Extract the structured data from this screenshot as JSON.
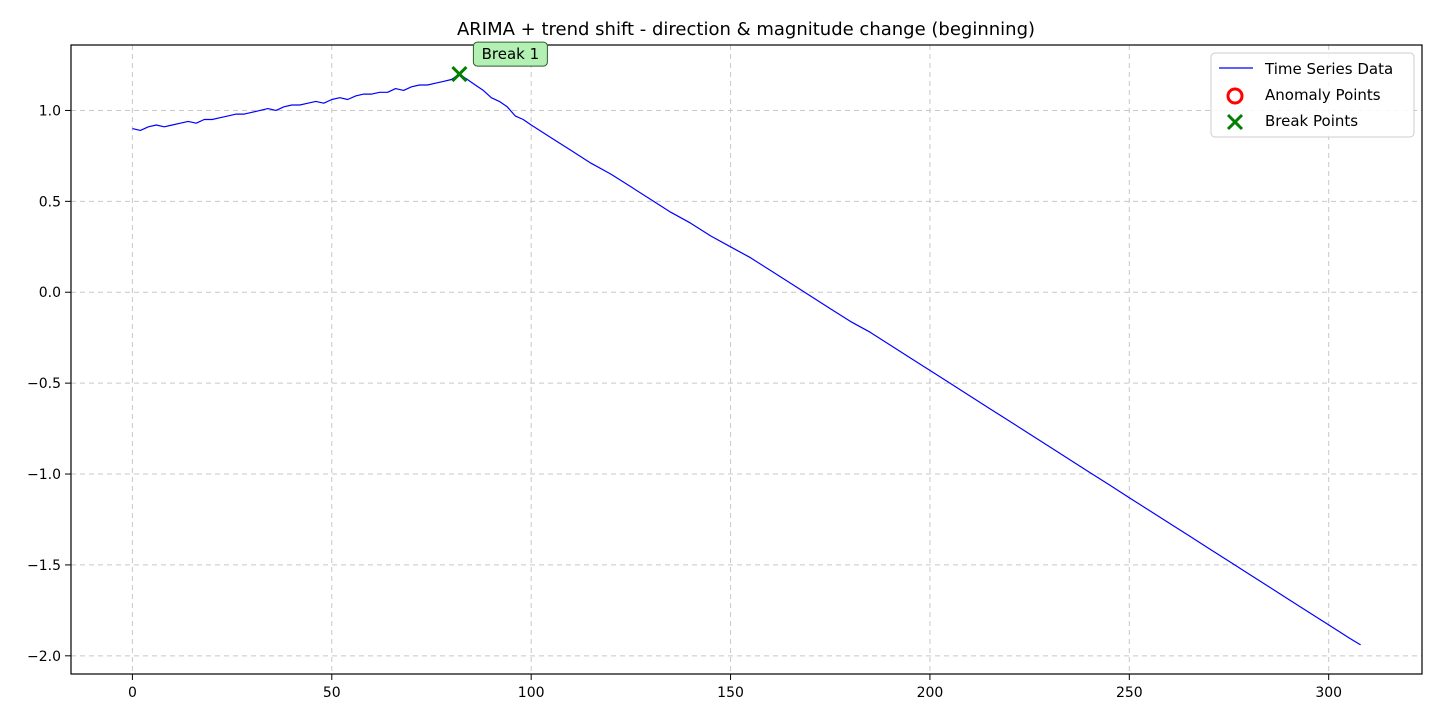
{
  "chart_data": {
    "type": "line",
    "title": "ARIMA + trend shift - direction & magnitude change (beginning)",
    "xlabel": "",
    "ylabel": "",
    "xlim": [
      -15.4,
      323.4
    ],
    "ylim": [
      -2.1,
      1.36
    ],
    "x_ticks": [
      0,
      50,
      100,
      150,
      200,
      250,
      300
    ],
    "x_tick_labels": [
      "0",
      "50",
      "100",
      "150",
      "200",
      "250",
      "300"
    ],
    "y_ticks": [
      -2.0,
      -1.5,
      -1.0,
      -0.5,
      0.0,
      0.5,
      1.0
    ],
    "y_tick_labels": [
      "−2.0",
      "−1.5",
      "−1.0",
      "−0.5",
      "0.0",
      "0.5",
      "1.0"
    ],
    "grid": true,
    "legend": {
      "position": "top-right",
      "entries": [
        {
          "label": "Time Series Data",
          "marker": "line",
          "color": "#0000ff"
        },
        {
          "label": "Anomaly Points",
          "marker": "circle",
          "color": "#ff0000"
        },
        {
          "label": "Break Points",
          "marker": "x",
          "color": "#008000"
        }
      ]
    },
    "series": [
      {
        "name": "Time Series Data",
        "color": "#0000ff",
        "x": [
          0,
          2,
          4,
          6,
          8,
          10,
          12,
          14,
          16,
          18,
          20,
          22,
          24,
          26,
          28,
          30,
          32,
          34,
          36,
          38,
          40,
          42,
          44,
          46,
          48,
          50,
          52,
          54,
          56,
          58,
          60,
          62,
          64,
          66,
          68,
          70,
          72,
          74,
          76,
          78,
          80,
          82,
          84,
          86,
          88,
          90,
          92,
          94,
          96,
          98,
          100,
          105,
          110,
          115,
          120,
          125,
          130,
          135,
          140,
          145,
          150,
          155,
          160,
          165,
          170,
          175,
          180,
          185,
          190,
          195,
          200,
          205,
          210,
          215,
          220,
          225,
          230,
          235,
          240,
          245,
          250,
          255,
          260,
          265,
          270,
          275,
          280,
          285,
          290,
          295,
          300,
          305,
          308
        ],
        "y": [
          0.9,
          0.89,
          0.91,
          0.92,
          0.91,
          0.92,
          0.93,
          0.94,
          0.93,
          0.95,
          0.95,
          0.96,
          0.97,
          0.98,
          0.98,
          0.99,
          1.0,
          1.01,
          1.0,
          1.02,
          1.03,
          1.03,
          1.04,
          1.05,
          1.04,
          1.06,
          1.07,
          1.06,
          1.08,
          1.09,
          1.09,
          1.1,
          1.1,
          1.12,
          1.11,
          1.13,
          1.14,
          1.14,
          1.15,
          1.16,
          1.17,
          1.2,
          1.17,
          1.14,
          1.11,
          1.07,
          1.05,
          1.02,
          0.97,
          0.95,
          0.92,
          0.85,
          0.78,
          0.71,
          0.65,
          0.58,
          0.51,
          0.44,
          0.38,
          0.31,
          0.25,
          0.19,
          0.12,
          0.05,
          -0.02,
          -0.09,
          -0.16,
          -0.22,
          -0.29,
          -0.36,
          -0.43,
          -0.5,
          -0.57,
          -0.64,
          -0.71,
          -0.78,
          -0.85,
          -0.92,
          -0.99,
          -1.06,
          -1.13,
          -1.2,
          -1.27,
          -1.34,
          -1.41,
          -1.48,
          -1.55,
          -1.62,
          -1.69,
          -1.76,
          -1.83,
          -1.9,
          -1.94
        ]
      },
      {
        "name": "Break Points",
        "type": "scatter",
        "marker": "x",
        "color": "#008000",
        "x": [
          82
        ],
        "y": [
          1.2
        ]
      }
    ],
    "annotations": [
      {
        "text": "Break 1",
        "x": 82,
        "y": 1.2,
        "box_color": "#b3f0b3"
      }
    ]
  }
}
